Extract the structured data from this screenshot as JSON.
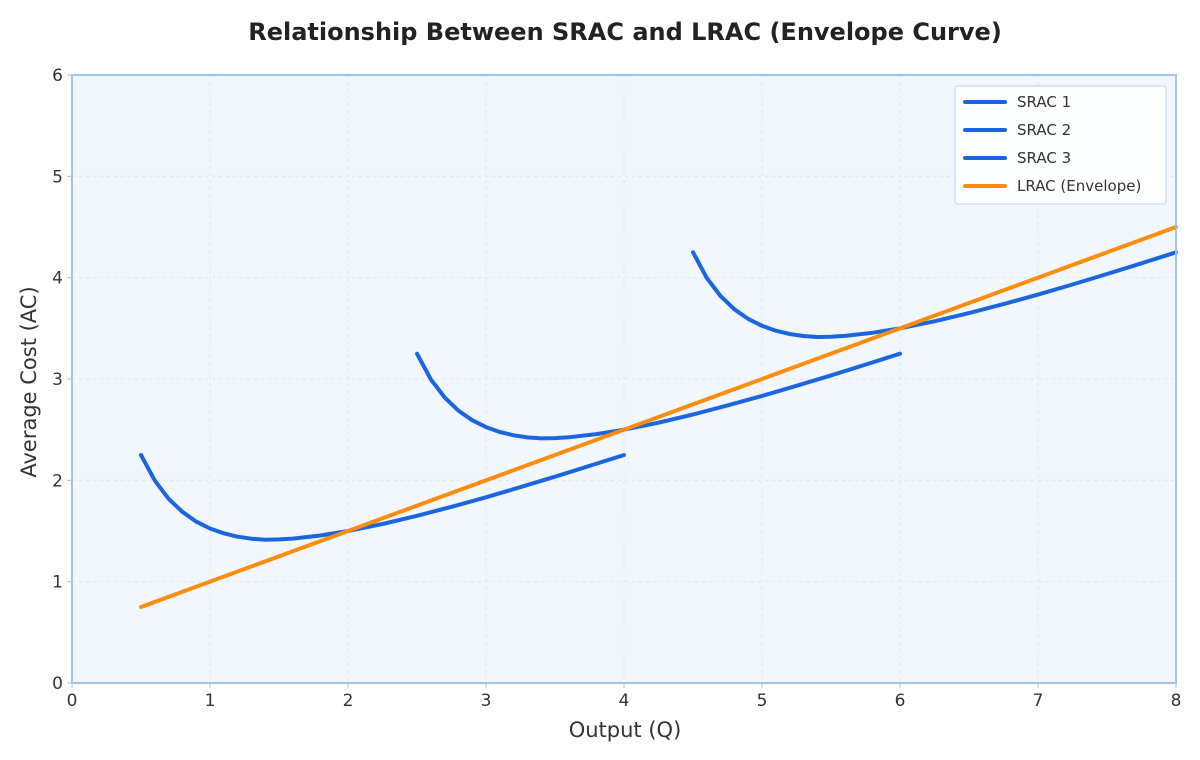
{
  "chart_data": {
    "type": "line",
    "title": "Relationship Between SRAC and LRAC (Envelope Curve)",
    "xlabel": "Output (Q)",
    "ylabel": "Average Cost (AC)",
    "xlim": [
      0,
      8
    ],
    "ylim": [
      0,
      6
    ],
    "xticks": [
      0,
      1,
      2,
      3,
      4,
      5,
      6,
      7,
      8
    ],
    "yticks": [
      0,
      1,
      2,
      3,
      4,
      5,
      6
    ],
    "grid": true,
    "legend_position": "top-right",
    "series": [
      {
        "name": "SRAC 1",
        "color": "#1a66e0",
        "x": [
          0.5,
          0.6,
          0.7,
          0.8,
          0.9,
          1.0,
          1.1,
          1.2,
          1.3,
          1.4,
          1.5,
          1.6,
          1.8,
          2.0,
          2.25,
          2.5,
          2.75,
          3.0,
          3.25,
          3.5,
          3.75,
          4.0
        ],
        "y": [
          2.25,
          1.997,
          1.818,
          1.688,
          1.593,
          1.525,
          1.477,
          1.444,
          1.424,
          1.414,
          1.417,
          1.425,
          1.456,
          1.5,
          1.569,
          1.65,
          1.739,
          1.833,
          1.933,
          2.036,
          2.142,
          2.25
        ]
      },
      {
        "name": "SRAC 2",
        "color": "#1a66e0",
        "x": [
          2.5,
          2.6,
          2.7,
          2.8,
          2.9,
          3.0,
          3.1,
          3.2,
          3.3,
          3.4,
          3.5,
          3.6,
          3.8,
          4.0,
          4.25,
          4.5,
          4.75,
          5.0,
          5.25,
          5.5,
          5.75,
          6.0
        ],
        "y": [
          3.25,
          2.997,
          2.818,
          2.688,
          2.593,
          2.525,
          2.477,
          2.444,
          2.424,
          2.414,
          2.417,
          2.425,
          2.456,
          2.5,
          2.569,
          2.65,
          2.739,
          2.833,
          2.933,
          3.036,
          3.142,
          3.25
        ]
      },
      {
        "name": "SRAC 3",
        "color": "#1a66e0",
        "x": [
          4.5,
          4.6,
          4.7,
          4.8,
          4.9,
          5.0,
          5.1,
          5.2,
          5.3,
          5.4,
          5.5,
          5.6,
          5.8,
          6.0,
          6.25,
          6.5,
          6.75,
          7.0,
          7.25,
          7.5,
          7.75,
          8.0
        ],
        "y": [
          4.25,
          3.997,
          3.818,
          3.688,
          3.593,
          3.525,
          3.477,
          3.444,
          3.424,
          3.414,
          3.417,
          3.425,
          3.456,
          3.5,
          3.569,
          3.65,
          3.739,
          3.833,
          3.933,
          4.036,
          4.142,
          4.25
        ]
      },
      {
        "name": "LRAC (Envelope)",
        "color": "#ff8c0a",
        "x": [
          0.5,
          8.0
        ],
        "y": [
          0.75,
          4.5
        ]
      }
    ]
  }
}
